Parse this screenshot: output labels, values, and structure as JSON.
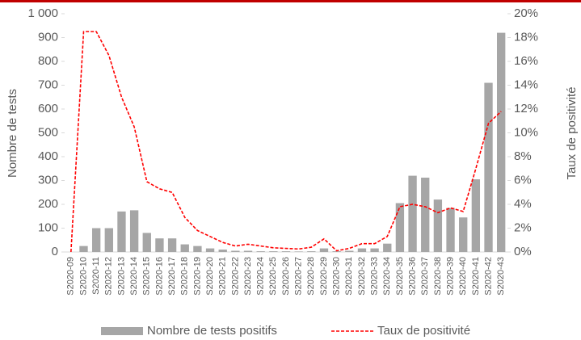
{
  "chart_data": {
    "type": "bar_line",
    "ylabel": "Nombre de tests",
    "y2label": "Taux de positivité",
    "categories": [
      "S2020-09",
      "S2020-10",
      "S2020-11",
      "S2020-12",
      "S2020-13",
      "S2020-14",
      "S2020-15",
      "S2020-16",
      "S2020-17",
      "S2020-18",
      "S2020-19",
      "S2020-20",
      "S2020-21",
      "S2020-22",
      "S2020-23",
      "S2020-24",
      "S2020-25",
      "S2020-26",
      "S2020-27",
      "S2020-28",
      "S2020-29",
      "S2020-30",
      "S2020-31",
      "S2020-32",
      "S2020-33",
      "S2020-34",
      "S2020-35",
      "S2020-36",
      "S2020-37",
      "S2020-38",
      "S2020-39",
      "S2020-40",
      "S2020-41",
      "S2020-42",
      "S2020-43"
    ],
    "series": [
      {
        "name": "Nombre de tests positifs",
        "color": "#a6a6a6",
        "type": "bar",
        "values": [
          0,
          25,
          100,
          100,
          170,
          175,
          80,
          57,
          57,
          32,
          25,
          15,
          10,
          5,
          5,
          3,
          3,
          3,
          2,
          3,
          15,
          3,
          5,
          15,
          15,
          35,
          205,
          320,
          312,
          220,
          185,
          145,
          305,
          710,
          920
        ]
      },
      {
        "name": "Taux de positivité",
        "color": "#ff0000",
        "type": "line",
        "axis": "y2",
        "values": [
          0,
          18.5,
          18.5,
          16.5,
          13,
          10.5,
          5.9,
          5.3,
          5,
          2.9,
          1.8,
          1.3,
          0.8,
          0.5,
          0.65,
          0.5,
          0.35,
          0.3,
          0.25,
          0.4,
          1.1,
          0.1,
          0.3,
          0.7,
          0.7,
          1.3,
          3.8,
          4,
          3.8,
          3.3,
          3.7,
          3.4,
          7,
          10.8,
          11.8
        ]
      }
    ],
    "ylim": [
      0,
      1000
    ],
    "yticks": [
      0,
      100,
      200,
      300,
      400,
      500,
      600,
      700,
      800,
      900,
      {
        "value": 1000,
        "label": "1 000"
      }
    ],
    "y2lim": [
      0,
      20
    ],
    "y2ticks": [
      {
        "value": 0,
        "label": "0%"
      },
      {
        "value": 2,
        "label": "2%"
      },
      {
        "value": 4,
        "label": "4%"
      },
      {
        "value": 6,
        "label": "6%"
      },
      {
        "value": 8,
        "label": "8%"
      },
      {
        "value": 10,
        "label": "10%"
      },
      {
        "value": 12,
        "label": "12%"
      },
      {
        "value": 14,
        "label": "14%"
      },
      {
        "value": 16,
        "label": "16%"
      },
      {
        "value": 18,
        "label": "18%"
      },
      {
        "value": 20,
        "label": "20%"
      }
    ],
    "legend": "bottom"
  }
}
